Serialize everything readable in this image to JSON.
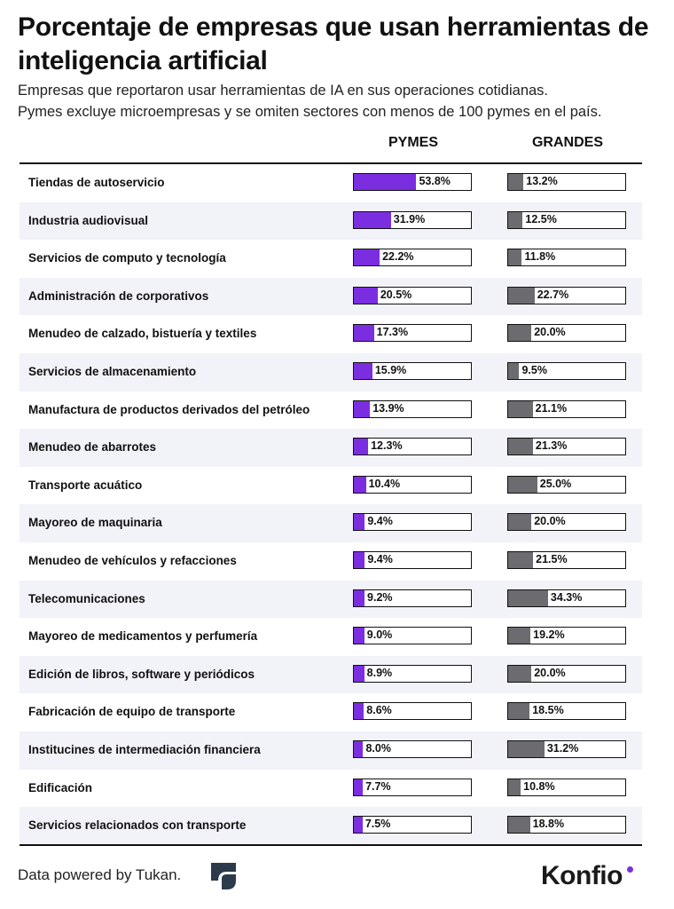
{
  "header": {
    "title": "Porcentaje de empresas que usan herramientas de inteligencia artificial",
    "subtitle_line1": "Empresas que reportaron usar herramientas de IA en sus operaciones cotidianas.",
    "subtitle_line2": "Pymes excluye microempresas y se omiten sectores con menos de 100 pymes en el país."
  },
  "colors": {
    "pymes": "#7b2ee0",
    "grandes": "#6b6b70",
    "alt_row": "#f2f2f9"
  },
  "chart_data": {
    "type": "bar",
    "orientation": "horizontal",
    "title": "Porcentaje de empresas que usan herramientas de inteligencia artificial",
    "xlim": [
      0,
      100
    ],
    "categories": [
      "Tiendas de autoservicio",
      "Industria audiovisual",
      "Servicios de computo y tecnología",
      "Administración de corporativos",
      "Menudeo de calzado, bistuería y textiles",
      "Servicios de almacenamiento",
      "Manufactura de productos derivados del petróleo",
      "Menudeo de abarrotes",
      "Transporte acuático",
      "Mayoreo de maquinaria",
      "Menudeo de vehículos y refacciones",
      "Telecomunicaciones",
      "Mayoreo de medicamentos y perfumería",
      "Edición de libros, software y periódicos",
      "Fabricación de equipo de transporte",
      "Institucines de intermediación financiera",
      "Edificación",
      "Servicios relacionados con transporte"
    ],
    "series": [
      {
        "name": "PYMES",
        "values": [
          53.8,
          31.9,
          22.2,
          20.5,
          17.3,
          15.9,
          13.9,
          12.3,
          10.4,
          9.4,
          9.4,
          9.2,
          9.0,
          8.9,
          8.6,
          8.0,
          7.7,
          7.5
        ]
      },
      {
        "name": "GRANDES",
        "values": [
          13.2,
          12.5,
          11.8,
          22.7,
          20.0,
          9.5,
          21.1,
          21.3,
          25.0,
          20.0,
          21.5,
          34.3,
          19.2,
          20.0,
          18.5,
          31.2,
          10.8,
          18.8
        ]
      }
    ]
  },
  "footer": {
    "credit": "Data powered by Tukan.",
    "brand": "Konfio"
  }
}
